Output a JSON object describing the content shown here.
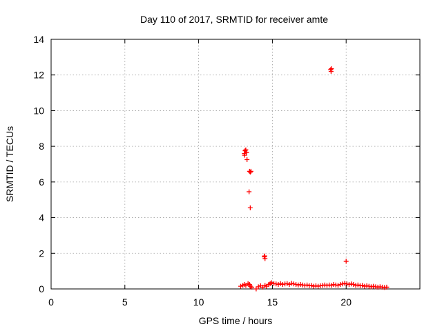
{
  "chart_data": {
    "type": "scatter",
    "title": "Day 110 of 2017, SRMTID for receiver amte",
    "xlabel": "GPS time / hours",
    "ylabel": "SRMTID / TECUs",
    "xlim": [
      0,
      25
    ],
    "ylim": [
      0,
      14
    ],
    "xticks": [
      0,
      5,
      10,
      15,
      20
    ],
    "yticks": [
      0,
      2,
      4,
      6,
      8,
      10,
      12,
      14
    ],
    "grid": true,
    "marker": "plus",
    "color": "#ff0000",
    "points": [
      [
        13.1,
        7.6
      ],
      [
        13.15,
        7.75
      ],
      [
        13.2,
        7.8
      ],
      [
        13.12,
        7.5
      ],
      [
        13.25,
        7.65
      ],
      [
        13.28,
        7.25
      ],
      [
        13.45,
        6.6
      ],
      [
        13.5,
        6.55
      ],
      [
        13.55,
        6.6
      ],
      [
        13.42,
        5.45
      ],
      [
        13.5,
        4.55
      ],
      [
        14.45,
        1.8
      ],
      [
        14.5,
        1.7
      ],
      [
        14.48,
        1.85
      ],
      [
        18.95,
        12.3
      ],
      [
        18.98,
        12.2
      ],
      [
        19.0,
        12.35
      ],
      [
        20.0,
        1.55
      ],
      [
        12.85,
        0.15
      ],
      [
        13.0,
        0.2
      ],
      [
        13.1,
        0.25
      ],
      [
        13.2,
        0.2
      ],
      [
        13.35,
        0.3
      ],
      [
        13.45,
        0.25
      ],
      [
        13.5,
        0.15
      ],
      [
        13.6,
        0.1
      ],
      [
        13.9,
        0.0
      ],
      [
        14.05,
        0.12
      ],
      [
        14.2,
        0.18
      ],
      [
        14.35,
        0.1
      ],
      [
        14.5,
        0.2
      ],
      [
        14.6,
        0.15
      ],
      [
        14.75,
        0.25
      ],
      [
        14.85,
        0.3
      ],
      [
        14.95,
        0.35
      ],
      [
        15.1,
        0.3
      ],
      [
        15.25,
        0.28
      ],
      [
        15.4,
        0.25
      ],
      [
        15.55,
        0.3
      ],
      [
        15.7,
        0.25
      ],
      [
        15.85,
        0.28
      ],
      [
        16.0,
        0.3
      ],
      [
        16.15,
        0.25
      ],
      [
        16.3,
        0.32
      ],
      [
        16.45,
        0.28
      ],
      [
        16.6,
        0.25
      ],
      [
        16.75,
        0.22
      ],
      [
        16.9,
        0.25
      ],
      [
        17.05,
        0.22
      ],
      [
        17.2,
        0.2
      ],
      [
        17.35,
        0.22
      ],
      [
        17.5,
        0.18
      ],
      [
        17.65,
        0.2
      ],
      [
        17.8,
        0.15
      ],
      [
        17.95,
        0.18
      ],
      [
        18.1,
        0.15
      ],
      [
        18.25,
        0.18
      ],
      [
        18.4,
        0.2
      ],
      [
        18.55,
        0.22
      ],
      [
        18.7,
        0.2
      ],
      [
        18.85,
        0.22
      ],
      [
        19.0,
        0.2
      ],
      [
        19.15,
        0.25
      ],
      [
        19.3,
        0.22
      ],
      [
        19.45,
        0.2
      ],
      [
        19.6,
        0.25
      ],
      [
        19.75,
        0.28
      ],
      [
        19.9,
        0.32
      ],
      [
        20.05,
        0.28
      ],
      [
        20.2,
        0.25
      ],
      [
        20.35,
        0.28
      ],
      [
        20.5,
        0.25
      ],
      [
        20.65,
        0.2
      ],
      [
        20.8,
        0.22
      ],
      [
        20.95,
        0.18
      ],
      [
        21.1,
        0.2
      ],
      [
        21.25,
        0.15
      ],
      [
        21.4,
        0.18
      ],
      [
        21.55,
        0.15
      ],
      [
        21.7,
        0.12
      ],
      [
        21.85,
        0.15
      ],
      [
        22.0,
        0.12
      ],
      [
        22.15,
        0.1
      ],
      [
        22.3,
        0.12
      ],
      [
        22.45,
        0.1
      ],
      [
        22.6,
        0.08
      ],
      [
        22.75,
        0.1
      ]
    ]
  }
}
